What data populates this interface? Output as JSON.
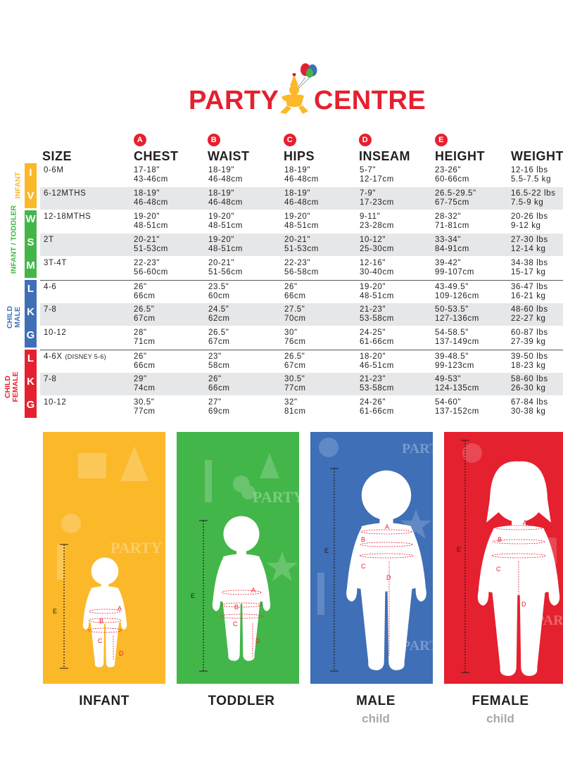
{
  "brand": {
    "logo_text_left": "PARTY",
    "logo_text_right": "CENTRE",
    "logo_color": "#e5202f",
    "icons": [
      "balloons-icon",
      "clown-icon"
    ]
  },
  "table": {
    "columns": [
      {
        "label": "SIZE",
        "badge": ""
      },
      {
        "label": "CHEST",
        "badge": "A"
      },
      {
        "label": "WAIST",
        "badge": "B"
      },
      {
        "label": "HIPS",
        "badge": "C"
      },
      {
        "label": "INSEAM",
        "badge": "D"
      },
      {
        "label": "HEIGHT",
        "badge": "E"
      },
      {
        "label": "WEIGHT",
        "badge": ""
      }
    ],
    "groups": [
      {
        "label": "INFANT",
        "color": "#fbb829"
      },
      {
        "label": "INFANT / TODDLER",
        "color": "#43b649"
      },
      {
        "label": "CHILD MALE",
        "color": "#3f6fb6"
      },
      {
        "label": "CHILD FEMALE",
        "color": "#e5202f"
      }
    ],
    "letters": [
      "I",
      "V",
      "W",
      "S",
      "M",
      "L",
      "K",
      "G",
      "L",
      "K",
      "G"
    ],
    "rows": [
      {
        "size": "0-6M",
        "size_note": "",
        "chest": [
          "17-18\"",
          "43-46cm"
        ],
        "waist": [
          "18-19\"",
          "46-48cm"
        ],
        "hips": [
          "18-19\"",
          "46-48cm"
        ],
        "inseam": [
          "5-7\"",
          "12-17cm"
        ],
        "height": [
          "23-26\"",
          "60-66cm"
        ],
        "weight": [
          "12-16 lbs",
          "5.5-7.5 kg"
        ]
      },
      {
        "size": "6-12MTHS",
        "size_note": "",
        "chest": [
          "18-19\"",
          "46-48cm"
        ],
        "waist": [
          "18-19\"",
          "46-48cm"
        ],
        "hips": [
          "18-19\"",
          "46-48cm"
        ],
        "inseam": [
          "7-9\"",
          "17-23cm"
        ],
        "height": [
          "26.5-29.5\"",
          "67-75cm"
        ],
        "weight": [
          "16.5-22 lbs",
          "7.5-9 kg"
        ]
      },
      {
        "size": "12-18MTHS",
        "size_note": "",
        "chest": [
          "19-20\"",
          "48-51cm"
        ],
        "waist": [
          "19-20\"",
          "48-51cm"
        ],
        "hips": [
          "19-20\"",
          "48-51cm"
        ],
        "inseam": [
          "9-11\"",
          "23-28cm"
        ],
        "height": [
          "28-32\"",
          "71-81cm"
        ],
        "weight": [
          "20-26 lbs",
          "9-12 kg"
        ]
      },
      {
        "size": "2T",
        "size_note": "",
        "chest": [
          "20-21\"",
          "51-53cm"
        ],
        "waist": [
          "19-20\"",
          "48-51cm"
        ],
        "hips": [
          "20-21\"",
          "51-53cm"
        ],
        "inseam": [
          "10-12\"",
          "25-30cm"
        ],
        "height": [
          "33-34\"",
          "84-91cm"
        ],
        "weight": [
          "27-30 lbs",
          "12-14 kg"
        ]
      },
      {
        "size": "3T-4T",
        "size_note": "",
        "chest": [
          "22-23\"",
          "56-60cm"
        ],
        "waist": [
          "20-21\"",
          "51-56cm"
        ],
        "hips": [
          "22-23\"",
          "56-58cm"
        ],
        "inseam": [
          "12-16\"",
          "30-40cm"
        ],
        "height": [
          "39-42\"",
          "99-107cm"
        ],
        "weight": [
          "34-38 lbs",
          "15-17 kg"
        ]
      },
      {
        "size": "4-6",
        "size_note": "",
        "chest": [
          "26\"",
          "66cm"
        ],
        "waist": [
          "23.5\"",
          "60cm"
        ],
        "hips": [
          "26\"",
          "66cm"
        ],
        "inseam": [
          "19-20\"",
          "48-51cm"
        ],
        "height": [
          "43-49.5\"",
          "109-126cm"
        ],
        "weight": [
          "36-47 lbs",
          "16-21 kg"
        ]
      },
      {
        "size": "7-8",
        "size_note": "",
        "chest": [
          "26.5\"",
          "67cm"
        ],
        "waist": [
          "24.5\"",
          "62cm"
        ],
        "hips": [
          "27.5\"",
          "70cm"
        ],
        "inseam": [
          "21-23\"",
          "53-58cm"
        ],
        "height": [
          "50-53.5\"",
          "127-136cm"
        ],
        "weight": [
          "48-60 lbs",
          "22-27 kg"
        ]
      },
      {
        "size": "10-12",
        "size_note": "",
        "chest": [
          "28\"",
          "71cm"
        ],
        "waist": [
          "26.5\"",
          "67cm"
        ],
        "hips": [
          "30\"",
          "76cm"
        ],
        "inseam": [
          "24-25\"",
          "61-66cm"
        ],
        "height": [
          "54-58.5\"",
          "137-149cm"
        ],
        "weight": [
          "60-87 lbs",
          "27-39 kg"
        ]
      },
      {
        "size": "4-6X",
        "size_note": "(DISNEY 5-6)",
        "chest": [
          "26\"",
          "66cm"
        ],
        "waist": [
          "23\"",
          "58cm"
        ],
        "hips": [
          "26.5\"",
          "67cm"
        ],
        "inseam": [
          "18-20\"",
          "46-51cm"
        ],
        "height": [
          "39-48.5\"",
          "99-123cm"
        ],
        "weight": [
          "39-50 lbs",
          "18-23 kg"
        ]
      },
      {
        "size": "7-8",
        "size_note": "",
        "chest": [
          "29\"",
          "74cm"
        ],
        "waist": [
          "26\"",
          "66cm"
        ],
        "hips": [
          "30.5\"",
          "77cm"
        ],
        "inseam": [
          "21-23\"",
          "53-58cm"
        ],
        "height": [
          "49-53\"",
          "124-135cm"
        ],
        "weight": [
          "58-60 lbs",
          "26-30 kg"
        ]
      },
      {
        "size": "10-12",
        "size_note": "",
        "chest": [
          "30.5\"",
          "77cm"
        ],
        "waist": [
          "27\"",
          "69cm"
        ],
        "hips": [
          "32\"",
          "81cm"
        ],
        "inseam": [
          "24-26\"",
          "61-66cm"
        ],
        "height": [
          "54-60\"",
          "137-152cm"
        ],
        "weight": [
          "67-84 lbs",
          "30-38 kg"
        ]
      }
    ]
  },
  "figures": [
    {
      "label": "INFANT",
      "sub": "",
      "color": "#fbb829",
      "bg_text": "PARTY"
    },
    {
      "label": "TODDLER",
      "sub": "",
      "color": "#43b649",
      "bg_text": "PARTY"
    },
    {
      "label": "MALE",
      "sub": "child",
      "color": "#3f6fb6",
      "bg_text": "PARTY"
    },
    {
      "label": "FEMALE",
      "sub": "child",
      "color": "#e5202f",
      "bg_text": "PARTY"
    }
  ],
  "measure_marks": [
    "A",
    "B",
    "C",
    "D",
    "E"
  ]
}
